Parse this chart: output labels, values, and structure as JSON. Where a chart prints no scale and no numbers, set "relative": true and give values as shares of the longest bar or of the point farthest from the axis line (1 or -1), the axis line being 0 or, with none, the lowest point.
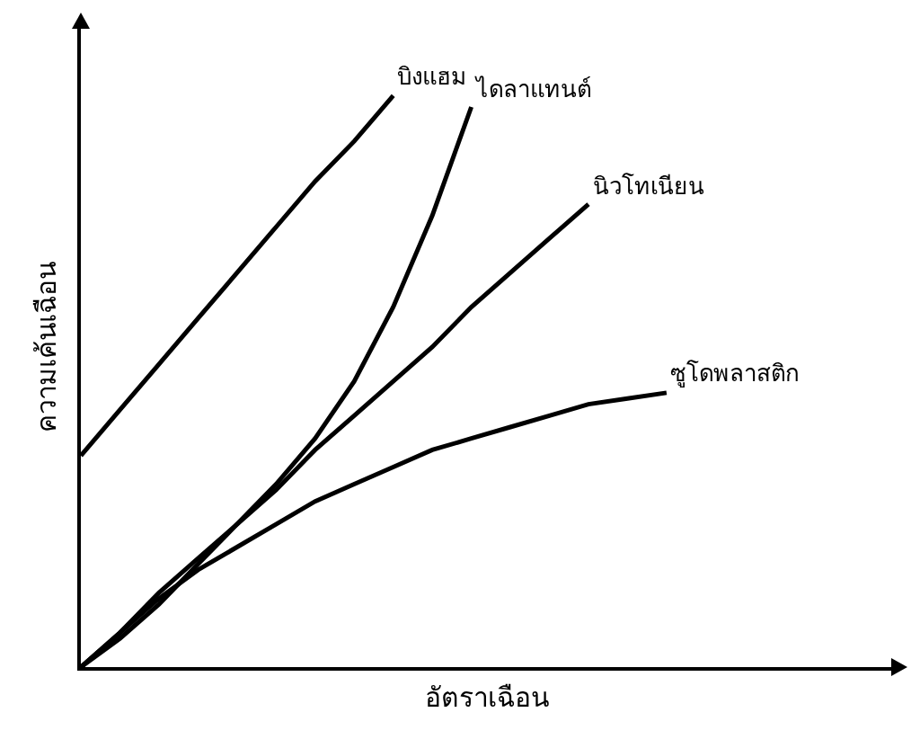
{
  "chart_data": {
    "type": "line",
    "relative": true,
    "xlabel": "อัตราเฉือน",
    "ylabel": "ความเค้นเฉือน",
    "grid": false,
    "legend": false,
    "marker": "none",
    "line_style": "solid",
    "categories": [
      null,
      null,
      null,
      null,
      null,
      null,
      null,
      null,
      null,
      null,
      null,
      null,
      null,
      null,
      null,
      null
    ],
    "series": [
      {
        "name": "บิงแฮม",
        "color": "#000000",
        "values": [
          0.37,
          0.45,
          0.53,
          0.61,
          0.69,
          0.77,
          0.85,
          0.92,
          1.0,
          null,
          null,
          null,
          null,
          null,
          null,
          null
        ]
      },
      {
        "name": "ไดลาแทนต์",
        "color": "#000000",
        "values": [
          0,
          0.05,
          0.11,
          0.18,
          0.25,
          0.32,
          0.4,
          0.5,
          0.63,
          0.79,
          0.98,
          null,
          null,
          null,
          null,
          null
        ]
      },
      {
        "name": "นิวโทเนียน",
        "color": "#000000",
        "values": [
          0,
          0.06,
          0.13,
          0.19,
          0.25,
          0.31,
          0.38,
          0.44,
          0.5,
          0.56,
          0.63,
          0.69,
          0.75,
          0.81,
          null,
          null
        ]
      },
      {
        "name": "ซูโดพลาสติก",
        "color": "#000000",
        "values": [
          0,
          0.06,
          0.12,
          0.17,
          0.21,
          0.25,
          0.29,
          0.32,
          0.35,
          0.38,
          0.4,
          0.42,
          0.44,
          0.46,
          0.47,
          0.48
        ]
      }
    ]
  }
}
